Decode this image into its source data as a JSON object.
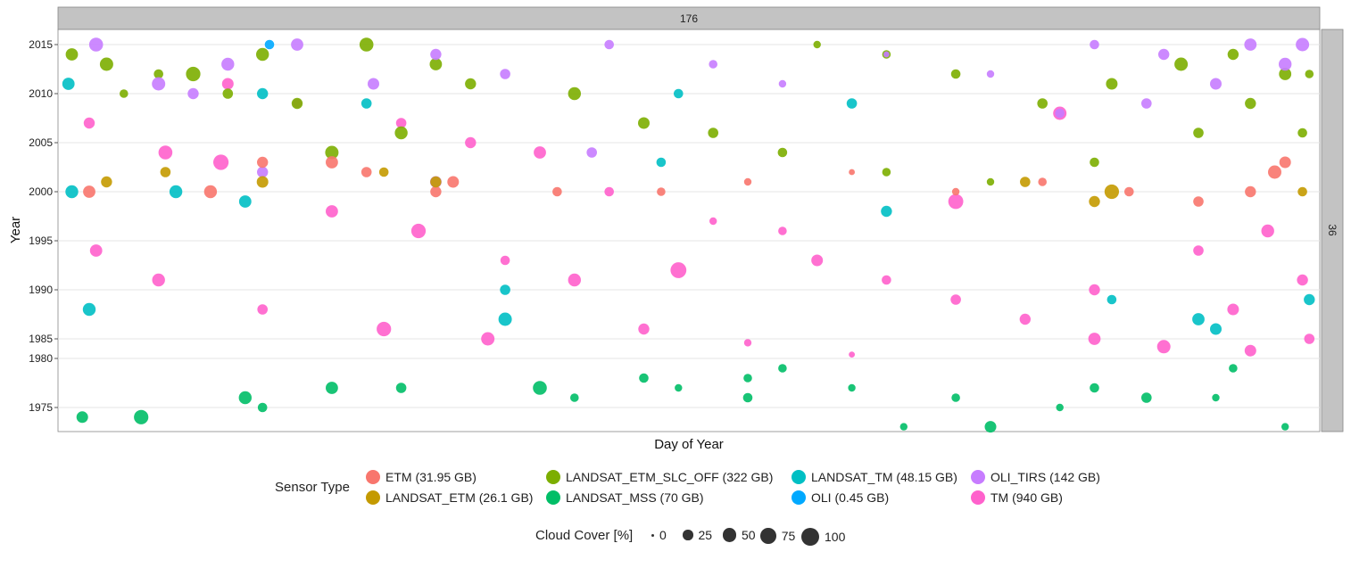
{
  "chart_data": {
    "type": "scatter",
    "facet_top": "176",
    "facet_right": "36",
    "xlabel": "Day of Year",
    "ylabel": "Year",
    "y_ticks": [
      "2015",
      "2010",
      "2005",
      "2000",
      "1995",
      "1990",
      "1985",
      "1980",
      "1975"
    ],
    "x_range": [
      1,
      365
    ],
    "size_legend": {
      "title": "Cloud Cover [%]",
      "breaks": [
        "0",
        "25",
        "50",
        "75",
        "100"
      ]
    },
    "color_legend": {
      "title": "Sensor Type",
      "entries": [
        {
          "name": "ETM (31.95 GB)",
          "color": "#F8766D"
        },
        {
          "name": "LANDSAT_ETM (26.1 GB)",
          "color": "#C49A00"
        },
        {
          "name": "LANDSAT_ETM_SLC_OFF (322 GB)",
          "color": "#7CAE00"
        },
        {
          "name": "LANDSAT_MSS (70 GB)",
          "color": "#00BE67"
        },
        {
          "name": "LANDSAT_TM (48.15 GB)",
          "color": "#00BFC4"
        },
        {
          "name": "OLI (0.45 GB)",
          "color": "#00A9FF"
        },
        {
          "name": "OLI_TIRS (142 GB)",
          "color": "#C77CFF"
        },
        {
          "name": "TM (940 GB)",
          "color": "#FF61CC"
        }
      ]
    },
    "series": [
      {
        "name": "TM (940 GB)",
        "points": [
          [
            10,
            2007,
            30
          ],
          [
            32,
            2004,
            55
          ],
          [
            48,
            2003,
            70
          ],
          [
            80,
            1998,
            40
          ],
          [
            105,
            1996,
            60
          ],
          [
            130,
            1993,
            20
          ],
          [
            150,
            1991,
            45
          ],
          [
            170,
            1986,
            30
          ],
          [
            200,
            1984,
            10
          ],
          [
            230,
            1981,
            5
          ],
          [
            260,
            1999,
            65
          ],
          [
            290,
            2008,
            50
          ],
          [
            12,
            1994,
            40
          ],
          [
            30,
            1991,
            45
          ],
          [
            60,
            1988,
            25
          ],
          [
            95,
            1986,
            60
          ],
          [
            125,
            1985,
            50
          ],
          [
            180,
            1992,
            75
          ],
          [
            220,
            1993,
            35
          ],
          [
            300,
            1990,
            30
          ],
          [
            330,
            1994,
            25
          ],
          [
            350,
            1996,
            45
          ],
          [
            345,
            1982,
            35
          ],
          [
            320,
            1983,
            50
          ],
          [
            300,
            1985,
            40
          ],
          [
            280,
            1987,
            30
          ],
          [
            260,
            1989,
            25
          ],
          [
            240,
            1991,
            20
          ],
          [
            210,
            1996,
            15
          ],
          [
            190,
            1997,
            10
          ],
          [
            160,
            2000,
            20
          ],
          [
            140,
            2004,
            40
          ],
          [
            120,
            2005,
            30
          ],
          [
            100,
            2007,
            25
          ],
          [
            70,
            2009,
            20
          ],
          [
            50,
            2011,
            35
          ],
          [
            360,
            1991,
            30
          ],
          [
            362,
            1985,
            25
          ],
          [
            340,
            1988,
            35
          ]
        ]
      },
      {
        "name": "LANDSAT_ETM_SLC_OFF (322 GB)",
        "points": [
          [
            5,
            2014,
            40
          ],
          [
            15,
            2013,
            50
          ],
          [
            40,
            2012,
            60
          ],
          [
            60,
            2014,
            45
          ],
          [
            90,
            2015,
            55
          ],
          [
            110,
            2013,
            40
          ],
          [
            120,
            2011,
            30
          ],
          [
            150,
            2010,
            45
          ],
          [
            170,
            2007,
            35
          ],
          [
            190,
            2006,
            25
          ],
          [
            210,
            2004,
            20
          ],
          [
            240,
            2002,
            15
          ],
          [
            270,
            2001,
            10
          ],
          [
            300,
            2003,
            20
          ],
          [
            330,
            2006,
            25
          ],
          [
            345,
            2009,
            30
          ],
          [
            355,
            2012,
            40
          ],
          [
            325,
            2013,
            50
          ],
          [
            305,
            2011,
            35
          ],
          [
            285,
            2009,
            25
          ],
          [
            260,
            2012,
            20
          ],
          [
            240,
            2014,
            15
          ],
          [
            220,
            2015,
            10
          ],
          [
            100,
            2006,
            45
          ],
          [
            80,
            2004,
            50
          ],
          [
            70,
            2009,
            30
          ],
          [
            50,
            2010,
            25
          ],
          [
            30,
            2012,
            20
          ],
          [
            20,
            2010,
            15
          ],
          [
            360,
            2006,
            20
          ],
          [
            362,
            2012,
            15
          ],
          [
            340,
            2014,
            30
          ]
        ]
      },
      {
        "name": "OLI_TIRS (142 GB)",
        "points": [
          [
            12,
            2015,
            55
          ],
          [
            30,
            2011,
            50
          ],
          [
            50,
            2013,
            45
          ],
          [
            70,
            2015,
            40
          ],
          [
            92,
            2011,
            35
          ],
          [
            110,
            2014,
            30
          ],
          [
            130,
            2012,
            25
          ],
          [
            160,
            2015,
            20
          ],
          [
            190,
            2013,
            15
          ],
          [
            210,
            2011,
            10
          ],
          [
            240,
            2014,
            5
          ],
          [
            270,
            2012,
            10
          ],
          [
            300,
            2015,
            20
          ],
          [
            320,
            2014,
            30
          ],
          [
            345,
            2015,
            40
          ],
          [
            360,
            2015,
            50
          ],
          [
            355,
            2013,
            45
          ],
          [
            335,
            2011,
            35
          ],
          [
            315,
            2009,
            25
          ],
          [
            290,
            2008,
            20
          ],
          [
            60,
            2002,
            30
          ],
          [
            110,
            2001,
            35
          ],
          [
            155,
            2004,
            25
          ],
          [
            40,
            2010,
            30
          ]
        ]
      },
      {
        "name": "ETM (31.95 GB)",
        "points": [
          [
            10,
            2000,
            40
          ],
          [
            45,
            2000,
            45
          ],
          [
            60,
            2003,
            30
          ],
          [
            90,
            2002,
            25
          ],
          [
            115,
            2001,
            35
          ],
          [
            145,
            2000,
            20
          ],
          [
            175,
            2000,
            15
          ],
          [
            200,
            2001,
            10
          ],
          [
            230,
            2002,
            5
          ],
          [
            260,
            2000,
            10
          ],
          [
            285,
            2001,
            15
          ],
          [
            310,
            2000,
            20
          ],
          [
            330,
            1999,
            25
          ],
          [
            345,
            2000,
            30
          ],
          [
            355,
            2003,
            35
          ],
          [
            352,
            2002,
            50
          ],
          [
            80,
            2003,
            40
          ],
          [
            110,
            2000,
            30
          ]
        ]
      },
      {
        "name": "LANDSAT_ETM (26.1 GB)",
        "points": [
          [
            15,
            2001,
            30
          ],
          [
            32,
            2002,
            25
          ],
          [
            60,
            2001,
            35
          ],
          [
            95,
            2002,
            20
          ],
          [
            110,
            2001,
            30
          ],
          [
            280,
            2001,
            25
          ],
          [
            300,
            1999,
            30
          ],
          [
            305,
            2000,
            60
          ],
          [
            360,
            2000,
            20
          ]
        ]
      },
      {
        "name": "LANDSAT_MSS (70 GB)",
        "points": [
          [
            8,
            1974,
            35
          ],
          [
            25,
            1974,
            60
          ],
          [
            55,
            1976,
            45
          ],
          [
            60,
            1975,
            20
          ],
          [
            80,
            1977,
            40
          ],
          [
            100,
            1977,
            25
          ],
          [
            140,
            1977,
            55
          ],
          [
            150,
            1976,
            15
          ],
          [
            180,
            1977,
            10
          ],
          [
            200,
            1976,
            20
          ],
          [
            210,
            1979,
            15
          ],
          [
            230,
            1977,
            10
          ],
          [
            260,
            1976,
            15
          ],
          [
            300,
            1977,
            20
          ],
          [
            315,
            1976,
            25
          ],
          [
            335,
            1976,
            10
          ],
          [
            340,
            1979,
            15
          ],
          [
            355,
            1973,
            10
          ],
          [
            270,
            1973,
            35
          ],
          [
            245,
            1973,
            10
          ],
          [
            200,
            1978,
            15
          ],
          [
            170,
            1978,
            20
          ],
          [
            290,
            1975,
            10
          ]
        ]
      },
      {
        "name": "LANDSAT_TM (48.15 GB)",
        "points": [
          [
            4,
            2011,
            40
          ],
          [
            5,
            2000,
            45
          ],
          [
            10,
            1988,
            45
          ],
          [
            35,
            2000,
            45
          ],
          [
            55,
            1999,
            40
          ],
          [
            130,
            1987,
            50
          ],
          [
            130,
            1990,
            25
          ],
          [
            175,
            2003,
            20
          ],
          [
            240,
            1998,
            30
          ],
          [
            305,
            1989,
            20
          ],
          [
            330,
            1987,
            40
          ],
          [
            335,
            1986,
            35
          ],
          [
            362,
            1989,
            30
          ],
          [
            230,
            2009,
            25
          ],
          [
            180,
            2010,
            20
          ],
          [
            60,
            2010,
            30
          ],
          [
            90,
            2009,
            25
          ]
        ]
      },
      {
        "name": "OLI (0.45 GB)",
        "points": [
          [
            62,
            2015,
            20
          ]
        ]
      }
    ]
  }
}
